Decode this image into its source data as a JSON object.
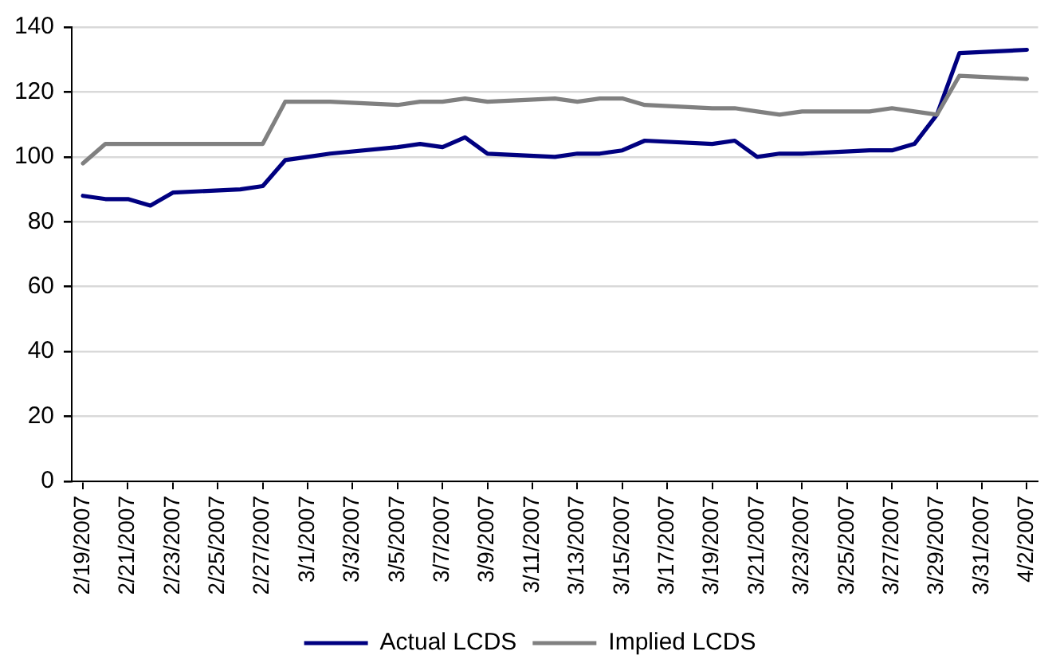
{
  "chart_data": {
    "type": "line",
    "x": [
      "2007-02-19",
      "2007-02-20",
      "2007-02-21",
      "2007-02-22",
      "2007-02-23",
      "2007-02-26",
      "2007-02-27",
      "2007-02-28",
      "2007-03-01",
      "2007-03-02",
      "2007-03-05",
      "2007-03-06",
      "2007-03-07",
      "2007-03-08",
      "2007-03-09",
      "2007-03-12",
      "2007-03-13",
      "2007-03-14",
      "2007-03-15",
      "2007-03-16",
      "2007-03-19",
      "2007-03-20",
      "2007-03-21",
      "2007-03-22",
      "2007-03-23",
      "2007-03-26",
      "2007-03-27",
      "2007-03-28",
      "2007-03-29",
      "2007-03-30",
      "2007-04-02"
    ],
    "series": [
      {
        "name": "Actual LCDS",
        "color": "#000080",
        "values": [
          88,
          87,
          87,
          85,
          89,
          90,
          91,
          99,
          100,
          101,
          103,
          104,
          103,
          106,
          101,
          100,
          101,
          101,
          102,
          105,
          104,
          105,
          100,
          101,
          101,
          102,
          102,
          104,
          113,
          132,
          133
        ]
      },
      {
        "name": "Implied LCDS",
        "color": "#808080",
        "values": [
          98,
          104,
          104,
          104,
          104,
          104,
          104,
          117,
          117,
          117,
          116,
          117,
          117,
          118,
          117,
          118,
          117,
          118,
          118,
          116,
          115,
          115,
          114,
          113,
          114,
          114,
          115,
          114,
          113,
          125,
          124
        ]
      }
    ],
    "xlim": [
      "2007-02-18T12:00",
      "2007-04-02T12:00"
    ],
    "xticks": [
      {
        "value": "2007-02-19",
        "label": "2/19/2007"
      },
      {
        "value": "2007-02-21",
        "label": "2/21/2007"
      },
      {
        "value": "2007-02-23",
        "label": "2/23/2007"
      },
      {
        "value": "2007-02-25",
        "label": "2/25/2007"
      },
      {
        "value": "2007-02-27",
        "label": "2/27/2007"
      },
      {
        "value": "2007-03-01",
        "label": "3/1/2007"
      },
      {
        "value": "2007-03-03",
        "label": "3/3/2007"
      },
      {
        "value": "2007-03-05",
        "label": "3/5/2007"
      },
      {
        "value": "2007-03-07",
        "label": "3/7/2007"
      },
      {
        "value": "2007-03-09",
        "label": "3/9/2007"
      },
      {
        "value": "2007-03-11",
        "label": "3/11/2007"
      },
      {
        "value": "2007-03-13",
        "label": "3/13/2007"
      },
      {
        "value": "2007-03-15",
        "label": "3/15/2007"
      },
      {
        "value": "2007-03-17",
        "label": "3/17/2007"
      },
      {
        "value": "2007-03-19",
        "label": "3/19/2007"
      },
      {
        "value": "2007-03-21",
        "label": "3/21/2007"
      },
      {
        "value": "2007-03-23",
        "label": "3/23/2007"
      },
      {
        "value": "2007-03-25",
        "label": "3/25/2007"
      },
      {
        "value": "2007-03-27",
        "label": "3/27/2007"
      },
      {
        "value": "2007-03-29",
        "label": "3/29/2007"
      },
      {
        "value": "2007-03-31",
        "label": "3/31/2007"
      },
      {
        "value": "2007-04-02",
        "label": "4/2/2007"
      }
    ],
    "ylim": [
      0,
      140
    ],
    "yticks": [
      0,
      20,
      40,
      60,
      80,
      100,
      120,
      140
    ],
    "grid": "y",
    "legend": "bottom"
  }
}
